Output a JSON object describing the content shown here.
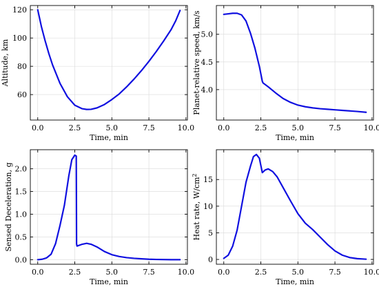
{
  "colors": {
    "line": "#1010e0",
    "grid": "#d9d9d9",
    "frame": "#000000"
  },
  "chart_data": [
    {
      "type": "line",
      "xlabel": "Time, min",
      "ylabel": "Altitude, km",
      "xlim": [
        -0.5,
        10.1
      ],
      "ylim": [
        42,
        123
      ],
      "xticks": [
        0.0,
        2.5,
        5.0,
        7.5,
        10.0
      ],
      "xtick_labels": [
        "0.0",
        "2.5",
        "5.0",
        "7.5",
        "10.0"
      ],
      "yticks": [
        60,
        80,
        100,
        120
      ],
      "ytick_labels": [
        "60",
        "80",
        "100",
        "120"
      ],
      "grid": true,
      "series": [
        {
          "x": [
            0,
            0.25,
            0.5,
            0.75,
            1.0,
            1.5,
            2.0,
            2.5,
            3.0,
            3.3,
            3.6,
            4.0,
            4.5,
            5.0,
            5.5,
            6.0,
            6.5,
            7.0,
            7.5,
            8.0,
            8.5,
            9.0,
            9.3,
            9.6
          ],
          "y": [
            120,
            108,
            98,
            89,
            81,
            68,
            58.5,
            52.5,
            50,
            49.5,
            49.6,
            50.6,
            53,
            56.5,
            60.5,
            65.5,
            71,
            77,
            83.5,
            90.5,
            98,
            106,
            112,
            119.5
          ]
        }
      ]
    },
    {
      "type": "line",
      "xlabel": "Time, min",
      "ylabel": "Planet-relative speed, km/s",
      "xlim": [
        -0.5,
        10.1
      ],
      "ylim": [
        3.45,
        5.52
      ],
      "xticks": [
        0.0,
        2.5,
        5.0,
        7.5,
        10.0
      ],
      "xtick_labels": [
        "0.0",
        "2.5",
        "5.0",
        "7.5",
        "10.0"
      ],
      "yticks": [
        4.0,
        4.5,
        5.0
      ],
      "ytick_labels": [
        "4.0",
        "4.5",
        "5.0"
      ],
      "grid": true,
      "series": [
        {
          "x": [
            0,
            0.3,
            0.6,
            0.9,
            1.2,
            1.5,
            1.8,
            2.1,
            2.4,
            2.6,
            2.65,
            3.0,
            3.5,
            4.0,
            4.5,
            5.0,
            5.5,
            6.0,
            6.5,
            7.0,
            7.5,
            8.0,
            8.5,
            9.0,
            9.6
          ],
          "y": [
            5.36,
            5.37,
            5.38,
            5.38,
            5.35,
            5.24,
            5.02,
            4.75,
            4.42,
            4.15,
            4.12,
            4.05,
            3.94,
            3.84,
            3.77,
            3.72,
            3.69,
            3.67,
            3.655,
            3.645,
            3.635,
            3.625,
            3.615,
            3.605,
            3.59
          ]
        }
      ]
    },
    {
      "type": "line",
      "xlabel": "Time, min",
      "ylabel": "Sensed Deceleration, g",
      "xlim": [
        -0.5,
        10.1
      ],
      "ylim": [
        -0.1,
        2.42
      ],
      "xticks": [
        0.0,
        2.5,
        5.0,
        7.5,
        10.0
      ],
      "xtick_labels": [
        "0.0",
        "2.5",
        "5.0",
        "7.5",
        "10.0"
      ],
      "yticks": [
        0.0,
        0.5,
        1.0,
        1.5,
        2.0
      ],
      "ytick_labels": [
        "0.0",
        "0.5",
        "1.0",
        "1.5",
        "2.0"
      ],
      "grid": true,
      "series": [
        {
          "x": [
            0,
            0.3,
            0.6,
            0.9,
            1.2,
            1.5,
            1.8,
            2.1,
            2.3,
            2.5,
            2.6,
            2.62,
            2.65,
            3.0,
            3.3,
            3.6,
            4.0,
            4.5,
            5.0,
            5.5,
            6.0,
            6.5,
            7.0,
            7.5,
            8.0,
            9.0,
            9.6
          ],
          "y": [
            0.0,
            0.01,
            0.04,
            0.12,
            0.35,
            0.75,
            1.2,
            1.85,
            2.2,
            2.3,
            2.28,
            0.35,
            0.3,
            0.34,
            0.36,
            0.34,
            0.28,
            0.18,
            0.11,
            0.07,
            0.045,
            0.03,
            0.02,
            0.01,
            0.005,
            0.0,
            0.0
          ]
        }
      ]
    },
    {
      "type": "line",
      "xlabel": "Time, min",
      "ylabel": "Heat rate, W/cm",
      "ylabel_sup": "2",
      "xlim": [
        -0.5,
        10.1
      ],
      "ylim": [
        -0.9,
        20.6
      ],
      "xticks": [
        0.0,
        2.5,
        5.0,
        7.5,
        10.0
      ],
      "xtick_labels": [
        "0.0",
        "2.5",
        "5.0",
        "7.5",
        "10.0"
      ],
      "yticks": [
        0,
        5,
        10,
        15
      ],
      "ytick_labels": [
        "0",
        "5",
        "10",
        "15"
      ],
      "grid": true,
      "series": [
        {
          "x": [
            0,
            0.3,
            0.6,
            0.9,
            1.2,
            1.5,
            1.8,
            2.0,
            2.2,
            2.4,
            2.6,
            2.8,
            3.0,
            3.3,
            3.6,
            4.0,
            4.5,
            5.0,
            5.5,
            6.0,
            6.5,
            7.0,
            7.5,
            8.0,
            8.5,
            9.0,
            9.6
          ],
          "y": [
            0.2,
            0.8,
            2.5,
            5.5,
            10.0,
            14.5,
            17.5,
            19.3,
            19.7,
            19.0,
            16.3,
            16.8,
            17.0,
            16.5,
            15.5,
            13.5,
            11.0,
            8.6,
            6.8,
            5.6,
            4.2,
            2.8,
            1.6,
            0.8,
            0.35,
            0.15,
            0.05
          ]
        }
      ]
    }
  ]
}
